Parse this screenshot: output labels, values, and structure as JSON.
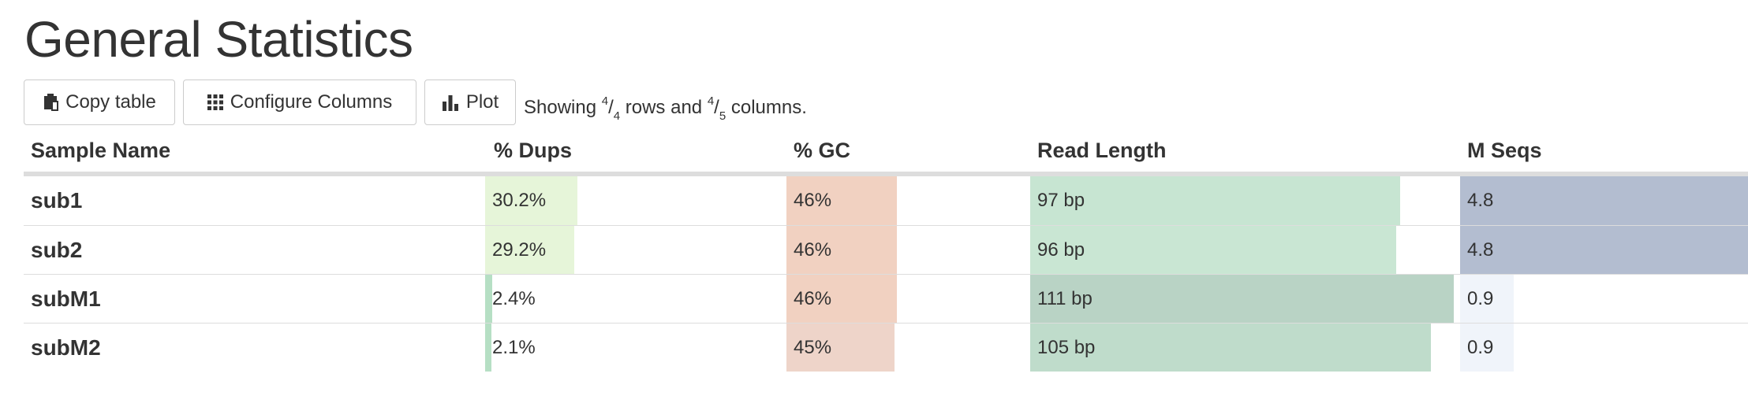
{
  "header": {
    "title": "General Statistics"
  },
  "toolbar": {
    "copy_label": "Copy table",
    "configure_label": "Configure Columns",
    "plot_label": "Plot",
    "showing": {
      "prefix": "Showing ",
      "rows_shown": "4",
      "rows_total": "4",
      "mid": " rows and ",
      "cols_shown": "4",
      "cols_total": "5",
      "suffix": " columns."
    }
  },
  "table": {
    "columns": [
      "Sample Name",
      "% Dups",
      "% GC",
      "Read Length",
      "M Seqs"
    ],
    "rows": [
      {
        "sample": "sub1",
        "dups": {
          "text": "30.2%",
          "value": 30.2
        },
        "gc": {
          "text": "46%",
          "value": 46
        },
        "len": {
          "text": "97 bp",
          "value": 97
        },
        "seqs": {
          "text": "4.8",
          "value": 4.8
        }
      },
      {
        "sample": "sub2",
        "dups": {
          "text": "29.2%",
          "value": 29.2
        },
        "gc": {
          "text": "46%",
          "value": 46
        },
        "len": {
          "text": "96 bp",
          "value": 96
        },
        "seqs": {
          "text": "4.8",
          "value": 4.8
        }
      },
      {
        "sample": "subM1",
        "dups": {
          "text": "2.4%",
          "value": 2.4
        },
        "gc": {
          "text": "46%",
          "value": 46
        },
        "len": {
          "text": "111 bp",
          "value": 111
        },
        "seqs": {
          "text": "0.9",
          "value": 0.9
        }
      },
      {
        "sample": "subM2",
        "dups": {
          "text": "2.1%",
          "value": 2.1
        },
        "gc": {
          "text": "45%",
          "value": 45
        },
        "len": {
          "text": "105 bp",
          "value": 105
        },
        "seqs": {
          "text": "0.9",
          "value": 0.9
        }
      }
    ],
    "scales": {
      "dups": {
        "max": 100
      },
      "gc": {
        "max": 100
      },
      "len": {
        "max": 111
      },
      "seqs": {
        "max": 4.8
      }
    },
    "colors": {
      "dups_high": "#e6f5d9",
      "dups_low": "#b6dfc4",
      "gc_46": "#f1d1c1",
      "gc_45": "#eed4c9",
      "len_96": "#c9e6d3",
      "len_97": "#c7e5d2",
      "len_105": "#bfdccb",
      "len_111": "#b9d3c5",
      "seqs_high": "#b3bdd0",
      "seqs_low": "#f0f4fa"
    }
  }
}
